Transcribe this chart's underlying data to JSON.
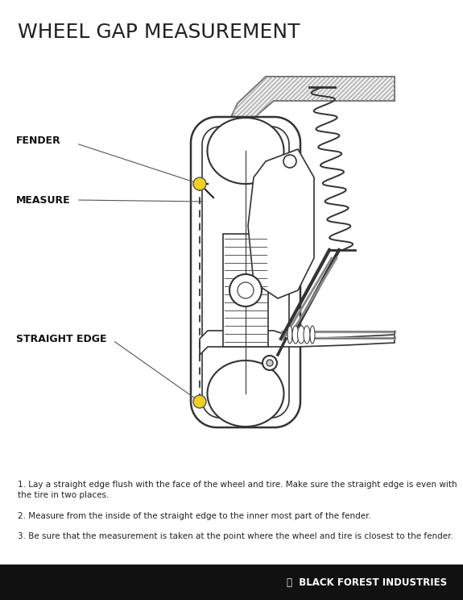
{
  "title": "WHEEL GAP MEASUREMENT",
  "title_color": "#222222",
  "title_fontsize": 18,
  "background_color": "#ffffff",
  "label_fender": "FENDER",
  "label_measure": "MEASURE",
  "label_straight_edge": "STRAIGHT EDGE",
  "label_color": "#111111",
  "label_fontsize": 9,
  "dot_color": "#f0d020",
  "dot_edgecolor": "#444444",
  "instr1": "1. Lay a straight edge flush with the face of the wheel and tire. Make sure the straight edge is even with\nthe tire in two places.",
  "instr2": "2. Measure from the inside of the straight edge to the inner most part of the fender.",
  "instr3": "3. Be sure that the measurement is taken at the point where the wheel and tire is closest to the fender.",
  "instruction_fontsize": 7.5,
  "instruction_color": "#222222",
  "footer_bg": "#111111",
  "footer_text": "Ⓐ  BLACK FOREST INDUSTRIES",
  "footer_text_color": "#ffffff",
  "footer_fontsize": 8.5
}
